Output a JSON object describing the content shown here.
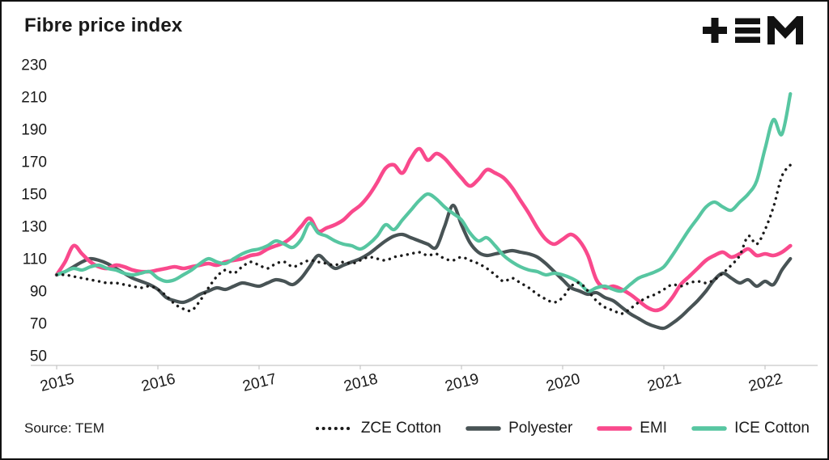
{
  "header": {
    "title": "Fibre price index",
    "brand": "TEM"
  },
  "footer": {
    "source": "Source: TEM"
  },
  "chart_data": {
    "type": "line",
    "title": "Fibre price index",
    "xlabel": "",
    "ylabel": "",
    "grid": false,
    "legend_position": "bottom",
    "x_start_year": 2015,
    "points_per_year": 12,
    "x_tick_labels": [
      "2015",
      "2016",
      "2017",
      "2018",
      "2019",
      "2020",
      "2021",
      "2022"
    ],
    "yticks": [
      50,
      70,
      90,
      110,
      130,
      150,
      170,
      190,
      210,
      230
    ],
    "ylim": [
      50,
      230
    ],
    "series": [
      {
        "name": "ZCE Cotton",
        "color": "#1a1a1a",
        "style": "dotted",
        "width": 3.4,
        "values": [
          100,
          100,
          99,
          98,
          97,
          96,
          95,
          95,
          94,
          93,
          92,
          93,
          91,
          87,
          82,
          79,
          78,
          84,
          92,
          99,
          103,
          101,
          105,
          108,
          106,
          104,
          107,
          108,
          105,
          107,
          109,
          108,
          107,
          106,
          108,
          107,
          109,
          111,
          110,
          109,
          111,
          112,
          113,
          114,
          112,
          113,
          110,
          109,
          111,
          109,
          107,
          104,
          100,
          96,
          98,
          95,
          92,
          88,
          85,
          83,
          86,
          93,
          95,
          90,
          84,
          80,
          78,
          76,
          79,
          83,
          86,
          88,
          91,
          94,
          93,
          95,
          96,
          95,
          97,
          101,
          106,
          112,
          124,
          119,
          128,
          142,
          161,
          168
        ]
      },
      {
        "name": "Polyester",
        "color": "#485355",
        "style": "solid",
        "width": 4.2,
        "values": [
          100,
          102,
          105,
          108,
          110,
          109,
          107,
          104,
          101,
          98,
          96,
          94,
          91,
          86,
          84,
          83,
          85,
          88,
          90,
          92,
          91,
          93,
          95,
          94,
          93,
          95,
          97,
          96,
          94,
          98,
          105,
          112,
          108,
          104,
          106,
          108,
          110,
          113,
          117,
          121,
          124,
          125,
          123,
          121,
          119,
          117,
          130,
          143,
          131,
          120,
          114,
          112,
          113,
          114,
          115,
          114,
          113,
          111,
          107,
          102,
          97,
          92,
          90,
          88,
          89,
          86,
          84,
          80,
          76,
          73,
          70,
          68,
          67,
          70,
          74,
          79,
          84,
          90,
          97,
          101,
          98,
          95,
          97,
          93,
          96,
          94,
          103,
          110
        ]
      },
      {
        "name": "EMI",
        "color": "#f9498c",
        "style": "solid",
        "width": 4.6,
        "values": [
          100,
          108,
          118,
          113,
          108,
          105,
          104,
          106,
          105,
          103,
          102,
          102,
          103,
          104,
          105,
          104,
          105,
          106,
          107,
          106,
          108,
          109,
          110,
          112,
          113,
          116,
          118,
          120,
          124,
          130,
          135,
          127,
          129,
          131,
          134,
          139,
          143,
          149,
          157,
          166,
          168,
          163,
          172,
          178,
          171,
          175,
          172,
          166,
          160,
          155,
          159,
          165,
          163,
          160,
          154,
          146,
          138,
          129,
          122,
          119,
          122,
          125,
          121,
          112,
          97,
          92,
          93,
          91,
          88,
          84,
          80,
          78,
          80,
          86,
          94,
          99,
          104,
          109,
          112,
          114,
          111,
          113,
          116,
          112,
          113,
          112,
          114,
          118
        ]
      },
      {
        "name": "ICE Cotton",
        "color": "#57c6a1",
        "style": "solid",
        "width": 4.2,
        "values": [
          100,
          102,
          104,
          103,
          105,
          106,
          104,
          103,
          101,
          100,
          101,
          102,
          98,
          96,
          97,
          100,
          103,
          107,
          110,
          108,
          107,
          110,
          113,
          115,
          116,
          118,
          121,
          119,
          117,
          122,
          132,
          126,
          124,
          121,
          119,
          118,
          116,
          119,
          124,
          131,
          128,
          134,
          140,
          146,
          150,
          147,
          142,
          138,
          134,
          126,
          121,
          123,
          118,
          112,
          108,
          105,
          103,
          102,
          100,
          101,
          100,
          98,
          95,
          90,
          92,
          93,
          91,
          90,
          94,
          98,
          100,
          102,
          105,
          112,
          120,
          128,
          135,
          142,
          145,
          142,
          140,
          145,
          150,
          158,
          178,
          196,
          187,
          212
        ]
      }
    ]
  }
}
